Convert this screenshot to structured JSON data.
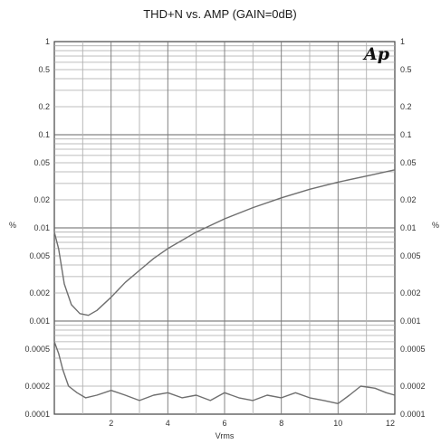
{
  "chart_data": {
    "type": "line",
    "title": "THD+N vs. AMP (GAIN=0dB)",
    "xlabel": "Vrms",
    "ylabel_left": "%",
    "ylabel_right": "%",
    "logo": "Ap",
    "x_scale": "linear",
    "y_scale": "log",
    "xlim": [
      0,
      12
    ],
    "ylim": [
      0.0001,
      1
    ],
    "x_ticks": [
      {
        "value": 2,
        "label": "2"
      },
      {
        "value": 4,
        "label": "4"
      },
      {
        "value": 6,
        "label": "6"
      },
      {
        "value": 8,
        "label": "8"
      },
      {
        "value": 10,
        "label": "10"
      },
      {
        "value": 12,
        "label": "12"
      }
    ],
    "y_ticks": [
      {
        "value": 1,
        "label": "1"
      },
      {
        "value": 0.5,
        "label": "0.5"
      },
      {
        "value": 0.2,
        "label": "0.2"
      },
      {
        "value": 0.1,
        "label": "0.1"
      },
      {
        "value": 0.05,
        "label": "0.05"
      },
      {
        "value": 0.02,
        "label": "0.02"
      },
      {
        "value": 0.01,
        "label": "0.01"
      },
      {
        "value": 0.005,
        "label": "0.005"
      },
      {
        "value": 0.002,
        "label": "0.002"
      },
      {
        "value": 0.001,
        "label": "0.001"
      },
      {
        "value": 0.0005,
        "label": "0.0005"
      },
      {
        "value": 0.0002,
        "label": "0.0002"
      },
      {
        "value": 0.0001,
        "label": "0.0001"
      }
    ],
    "grid": true,
    "series": [
      {
        "color": "#6f6f6f",
        "x": [
          0,
          0.15,
          0.35,
          0.6,
          0.9,
          1.2,
          1.5,
          2,
          2.5,
          3,
          3.5,
          4,
          5,
          6,
          7,
          8,
          9,
          10,
          11,
          12
        ],
        "y": [
          0.009,
          0.006,
          0.0025,
          0.0015,
          0.0012,
          0.00115,
          0.0013,
          0.0018,
          0.0026,
          0.0035,
          0.0047,
          0.006,
          0.009,
          0.0125,
          0.0165,
          0.021,
          0.026,
          0.031,
          0.036,
          0.042
        ]
      },
      {
        "color": "#6f6f6f",
        "x": [
          0,
          0.15,
          0.3,
          0.5,
          0.8,
          1.1,
          1.5,
          2,
          2.5,
          3,
          3.5,
          4,
          4.5,
          5,
          5.5,
          6,
          6.5,
          7,
          7.5,
          8,
          8.5,
          9,
          9.5,
          10,
          10.4,
          10.8,
          11.3,
          11.7,
          12
        ],
        "y": [
          0.0006,
          0.00045,
          0.0003,
          0.0002,
          0.00017,
          0.00015,
          0.00016,
          0.00018,
          0.00016,
          0.00014,
          0.00016,
          0.00017,
          0.00015,
          0.00016,
          0.00014,
          0.00017,
          0.00015,
          0.00014,
          0.00016,
          0.00015,
          0.00017,
          0.00015,
          0.00014,
          0.00013,
          0.00016,
          0.0002,
          0.00019,
          0.00017,
          0.00016
        ]
      }
    ]
  }
}
